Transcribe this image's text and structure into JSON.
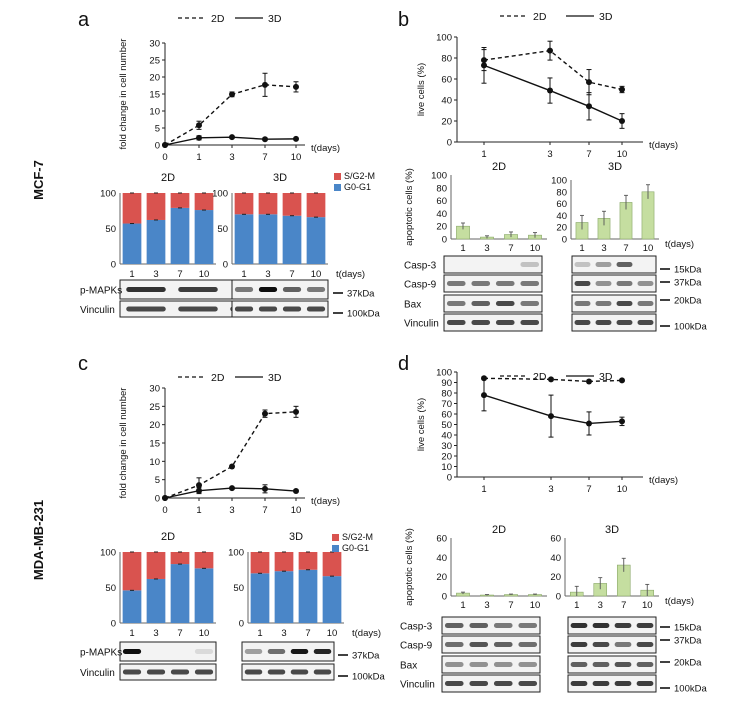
{
  "panel_letters": {
    "a": "a",
    "b": "b",
    "c": "c",
    "d": "d"
  },
  "cell_lines": {
    "top": "MCF-7",
    "bottom": "MDA-MB-231"
  },
  "colors": {
    "g2m": "#d9534f",
    "g0g1": "#4a86c8",
    "apoptotic_bar": "#c5dea0",
    "line": "#111111"
  },
  "kda": {
    "k15": "15kDa",
    "k20": "20kDa",
    "k37": "37kDa",
    "k100": "100kDa"
  },
  "proteins": {
    "pmapk": "p-MAPKs",
    "vinculin": "Vinculin",
    "casp3": "Casp-3",
    "casp9": "Casp-9",
    "bax": "Bax"
  },
  "chart_data": [
    {
      "id": "a_growth",
      "type": "line",
      "x": [
        0,
        1,
        3,
        7,
        10
      ],
      "xlabel": "t(days)",
      "ylabel": "fold change in cell number",
      "ylim": [
        0,
        30
      ],
      "yticks": [
        0,
        5,
        10,
        15,
        20,
        25,
        30
      ],
      "series": [
        {
          "name": "2D",
          "style": "dashed",
          "values": [
            0,
            5.8,
            14.9,
            17.7,
            17.1
          ],
          "err": [
            0,
            1.2,
            0.7,
            3.4,
            1.5
          ]
        },
        {
          "name": "3D",
          "style": "solid",
          "values": [
            0,
            2.1,
            2.3,
            1.7,
            1.8
          ],
          "err": [
            0,
            0.6,
            0.3,
            0.3,
            0.3
          ]
        }
      ]
    },
    {
      "id": "a_cycle_2d",
      "type": "bar",
      "title": "2D",
      "categories": [
        "1",
        "3",
        "7",
        "10"
      ],
      "ylim": [
        0,
        100
      ],
      "yticks": [
        0,
        50,
        100
      ],
      "series": [
        {
          "name": "G0-G1",
          "values": [
            57,
            62,
            79,
            76
          ]
        },
        {
          "name": "S/G2-M",
          "values": [
            43,
            38,
            21,
            24
          ]
        }
      ]
    },
    {
      "id": "a_cycle_3d",
      "type": "bar",
      "title": "3D",
      "categories": [
        "1",
        "3",
        "7",
        "10"
      ],
      "xlabel": "t(days)",
      "ylim": [
        0,
        100
      ],
      "yticks": [
        0,
        50,
        100
      ],
      "series": [
        {
          "name": "G0-G1",
          "values": [
            70,
            70,
            68,
            66
          ]
        },
        {
          "name": "S/G2-M",
          "values": [
            30,
            30,
            32,
            34
          ]
        }
      ]
    },
    {
      "id": "b_viability",
      "type": "line",
      "categories": [
        "1",
        "3",
        "7",
        "10"
      ],
      "xlabel": "t(days)",
      "ylabel": "live cells (%)",
      "ylim": [
        0,
        100
      ],
      "yticks": [
        0,
        20,
        40,
        60,
        80,
        100
      ],
      "series": [
        {
          "name": "2D",
          "style": "dashed",
          "values": [
            78,
            87,
            57,
            50
          ],
          "err": [
            10,
            9,
            12,
            3
          ]
        },
        {
          "name": "3D",
          "style": "solid",
          "values": [
            73,
            49,
            34,
            20
          ],
          "err": [
            17,
            12,
            13,
            7
          ]
        }
      ]
    },
    {
      "id": "b_apop_2d",
      "type": "bar",
      "title": "2D",
      "ylabel": "apoptotic cells (%)",
      "categories": [
        "1",
        "3",
        "7",
        "10"
      ],
      "ylim": [
        0,
        100
      ],
      "yticks": [
        0,
        20,
        40,
        60,
        80,
        100
      ],
      "series": [
        {
          "values": [
            20,
            3,
            7,
            6
          ],
          "err": [
            5,
            2,
            4,
            4
          ]
        }
      ]
    },
    {
      "id": "b_apop_3d",
      "type": "bar",
      "title": "3D",
      "categories": [
        "1",
        "3",
        "7",
        "10"
      ],
      "xlabel": "t(days)",
      "ylim": [
        0,
        100
      ],
      "yticks": [
        0,
        20,
        40,
        60,
        80,
        100
      ],
      "series": [
        {
          "values": [
            28,
            35,
            62,
            80
          ],
          "err": [
            12,
            12,
            12,
            12
          ]
        }
      ]
    },
    {
      "id": "c_growth",
      "type": "line",
      "x": [
        0,
        1,
        3,
        7,
        10
      ],
      "xlabel": "t(days)",
      "ylabel": "fold change in cell number",
      "ylim": [
        0,
        30
      ],
      "yticks": [
        0,
        5,
        10,
        15,
        20,
        25,
        30
      ],
      "series": [
        {
          "name": "2D",
          "style": "dashed",
          "values": [
            0,
            3.5,
            8.6,
            23,
            23.5
          ],
          "err": [
            0,
            2,
            0.3,
            1,
            1.5
          ]
        },
        {
          "name": "3D",
          "style": "solid",
          "values": [
            0,
            2,
            2.7,
            2.5,
            1.9
          ],
          "err": [
            0,
            0.8,
            0.2,
            1.1,
            0.4
          ]
        }
      ]
    },
    {
      "id": "c_cycle_2d",
      "type": "bar",
      "title": "2D",
      "categories": [
        "1",
        "3",
        "7",
        "10"
      ],
      "ylim": [
        0,
        100
      ],
      "yticks": [
        0,
        50,
        100
      ],
      "series": [
        {
          "name": "G0-G1",
          "values": [
            46,
            62,
            83,
            77
          ]
        },
        {
          "name": "S/G2-M",
          "values": [
            54,
            38,
            17,
            23
          ]
        }
      ]
    },
    {
      "id": "c_cycle_3d",
      "type": "bar",
      "title": "3D",
      "categories": [
        "1",
        "3",
        "7",
        "10"
      ],
      "xlabel": "t(days)",
      "ylim": [
        0,
        100
      ],
      "yticks": [
        0,
        50,
        100
      ],
      "series": [
        {
          "name": "G0-G1",
          "values": [
            70,
            73,
            75,
            66
          ]
        },
        {
          "name": "S/G2-M",
          "values": [
            30,
            27,
            25,
            34
          ]
        }
      ]
    },
    {
      "id": "d_viability",
      "type": "line",
      "categories": [
        "1",
        "3",
        "7",
        "10"
      ],
      "xlabel": "t(days)",
      "ylabel": "live cells (%)",
      "ylim": [
        0,
        100
      ],
      "yticks": [
        0,
        10,
        20,
        30,
        40,
        50,
        60,
        70,
        80,
        90,
        100
      ],
      "series": [
        {
          "name": "2D",
          "style": "dashed",
          "values": [
            94,
            93,
            91,
            92
          ],
          "err": [
            1,
            1,
            1,
            1
          ]
        },
        {
          "name": "3D",
          "style": "solid",
          "values": [
            78,
            58,
            51,
            53
          ],
          "err": [
            15,
            20,
            11,
            4
          ]
        }
      ]
    },
    {
      "id": "d_apop_2d",
      "type": "bar",
      "title": "2D",
      "ylabel": "apoptotic cells (%)",
      "categories": [
        "1",
        "3",
        "7",
        "10"
      ],
      "ylim": [
        0,
        60
      ],
      "yticks": [
        0,
        20,
        40,
        60
      ],
      "series": [
        {
          "values": [
            3,
            1,
            1.5,
            1.5
          ],
          "err": [
            1,
            0.5,
            0.5,
            0.5
          ]
        }
      ]
    },
    {
      "id": "d_apop_3d",
      "type": "bar",
      "title": "3D",
      "categories": [
        "1",
        "3",
        "7",
        "10"
      ],
      "xlabel": "t(days)",
      "ylim": [
        0,
        60
      ],
      "yticks": [
        0,
        20,
        40,
        60
      ],
      "series": [
        {
          "values": [
            4,
            13,
            32,
            6
          ],
          "err": [
            6,
            6,
            7,
            6
          ]
        }
      ]
    }
  ]
}
